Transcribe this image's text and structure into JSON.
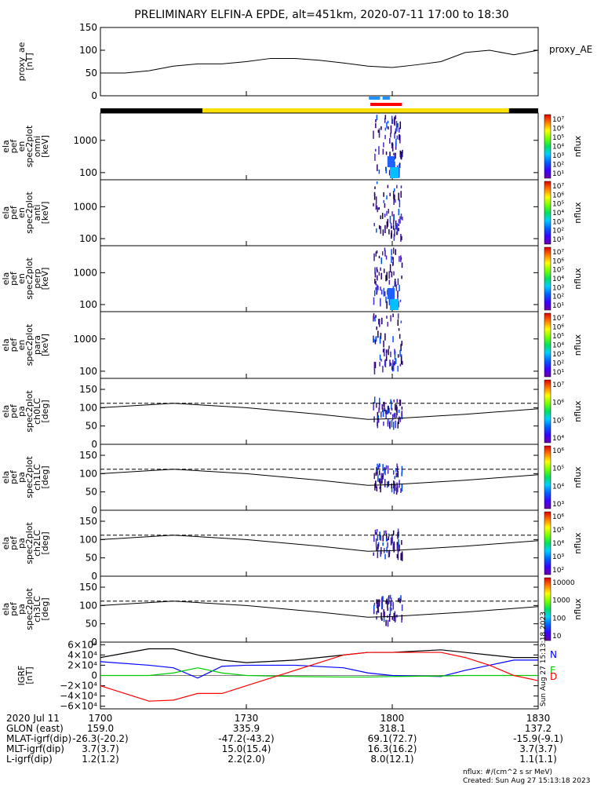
{
  "title": "PRELIMINARY ELFIN-A EPDE, alt=451km, 2020-07-11 17:00 to 18:30",
  "colors": {
    "ae_line": "#000000",
    "bar_sci_a": "#1e90ff",
    "bar_sci_b": "#ff0000",
    "bar_day": "#ffe000",
    "bar_night": "#000000",
    "grf_n": "#0000ff",
    "grf_e": "#00cc00",
    "grf_d": "#ff0000",
    "grf_tot": "#000000"
  },
  "chart_data": {
    "type": "stacked-timeseries",
    "x_range": [
      "17:00",
      "18:30"
    ],
    "x_ticks": [
      "1700",
      "1730",
      "1800",
      "1830"
    ],
    "x_tick_minutes": [
      0,
      30,
      60,
      90
    ],
    "panels": [
      {
        "id": "proxy_ae",
        "type": "line",
        "ylabel": [
          "proxy_ae",
          "[nT]"
        ],
        "legend": "proxy_AE",
        "ylim": [
          0,
          150
        ],
        "yticks": [
          "150",
          "100",
          "50",
          "0"
        ],
        "ytick_values": [
          150,
          100,
          50,
          0
        ],
        "x_minutes": [
          0,
          5,
          10,
          15,
          20,
          25,
          30,
          35,
          40,
          45,
          50,
          55,
          60,
          65,
          70,
          75,
          80,
          85,
          90
        ],
        "values": [
          50,
          50,
          55,
          65,
          70,
          70,
          75,
          82,
          82,
          78,
          72,
          65,
          62,
          68,
          75,
          95,
          100,
          90,
          100
        ]
      },
      {
        "id": "omni",
        "type": "spectrogram",
        "ylabel": [
          "ela",
          "pef",
          "en",
          "spec2plot",
          "omni",
          "[keV]"
        ],
        "yticks": [
          "1000",
          "100"
        ],
        "ytick_values": [
          1000,
          100
        ],
        "ylog": true,
        "ylim": [
          60,
          7000
        ],
        "zlabel": "nflux",
        "zticks": [
          "10⁷",
          "10⁶",
          "10⁵",
          "10⁴",
          "10³",
          "10²",
          "10¹"
        ]
      },
      {
        "id": "anti",
        "type": "spectrogram",
        "ylabel": [
          "ela",
          "pef",
          "en",
          "spec2plot",
          "anti",
          "[keV]"
        ],
        "yticks": [
          "1000",
          "100"
        ],
        "ytick_values": [
          1000,
          100
        ],
        "ylog": true,
        "ylim": [
          60,
          7000
        ],
        "zlabel": "nflux",
        "zticks": [
          "10⁷",
          "10⁶",
          "10⁵",
          "10⁴",
          "10³",
          "10²",
          "10¹"
        ]
      },
      {
        "id": "perp",
        "type": "spectrogram",
        "ylabel": [
          "ela",
          "pef",
          "en",
          "spec2plot",
          "perp",
          "[keV]"
        ],
        "yticks": [
          "1000",
          "100"
        ],
        "ytick_values": [
          1000,
          100
        ],
        "ylog": true,
        "ylim": [
          60,
          7000
        ],
        "zlabel": "nflux",
        "zticks": [
          "10⁷",
          "10⁶",
          "10⁵",
          "10⁴",
          "10³",
          "10²",
          "10¹"
        ]
      },
      {
        "id": "para",
        "type": "spectrogram",
        "ylabel": [
          "ela",
          "pef",
          "en",
          "spec2plot",
          "para",
          "[keV]"
        ],
        "yticks": [
          "1000",
          "100"
        ],
        "ytick_values": [
          1000,
          100
        ],
        "ylog": true,
        "ylim": [
          60,
          7000
        ],
        "zlabel": "nflux",
        "zticks": [
          "10⁷",
          "10⁶",
          "10⁵",
          "10⁴",
          "10³",
          "10²",
          "10¹"
        ]
      },
      {
        "id": "ch0LC",
        "type": "pitch-angle",
        "ylabel": [
          "ela",
          "pef",
          "pa",
          "spec2plot",
          "ch0LC",
          "[deg]"
        ],
        "yticks": [
          "150",
          "100",
          "50",
          "0"
        ],
        "ytick_values": [
          150,
          100,
          50,
          0
        ],
        "ylim": [
          0,
          180
        ],
        "zlabel": "nflux",
        "zticks": [
          "10⁷",
          "10⁶",
          "10⁵",
          "10⁴"
        ]
      },
      {
        "id": "ch1LC",
        "type": "pitch-angle",
        "ylabel": [
          "ela",
          "pef",
          "pa",
          "spec2plot",
          "ch1LC",
          "[deg]"
        ],
        "yticks": [
          "150",
          "100",
          "50",
          "0"
        ],
        "ytick_values": [
          150,
          100,
          50,
          0
        ],
        "ylim": [
          0,
          180
        ],
        "zlabel": "nflux",
        "zticks": [
          "10⁶",
          "10⁵",
          "10⁴",
          "10³"
        ]
      },
      {
        "id": "ch2LC",
        "type": "pitch-angle",
        "ylabel": [
          "ela",
          "pef",
          "pa",
          "spec2plot",
          "ch2LC",
          "[deg]"
        ],
        "yticks": [
          "150",
          "100",
          "50",
          "0"
        ],
        "ytick_values": [
          150,
          100,
          50,
          0
        ],
        "ylim": [
          0,
          180
        ],
        "zlabel": "nflux",
        "zticks": [
          "10⁶",
          "10⁵",
          "10⁴",
          "10³",
          "10²"
        ]
      },
      {
        "id": "ch3LC",
        "type": "pitch-angle",
        "ylabel": [
          "ela",
          "pef",
          "pa",
          "spec2plot",
          "ch3LC",
          "[deg]"
        ],
        "yticks": [
          "150",
          "100",
          "50",
          "0"
        ],
        "ytick_values": [
          150,
          100,
          50,
          0
        ],
        "ylim": [
          0,
          180
        ],
        "zlabel": "nflux",
        "zticks": [
          "10000",
          "1000",
          "100",
          "10"
        ]
      },
      {
        "id": "igrf",
        "type": "line",
        "ylabel": [
          "IGRF",
          "[nT]"
        ],
        "ylim": [
          -65000,
          65000
        ],
        "yticks": [
          "6×10⁴",
          "4×10⁴",
          "2×10⁴",
          "0",
          "−2×10⁴",
          "−4×10⁴",
          "−6×10⁴"
        ],
        "ytick_values": [
          60000,
          40000,
          20000,
          0,
          -20000,
          -40000,
          -60000
        ],
        "series_labels": [
          "N",
          "E",
          "D"
        ],
        "side_note": "Sun Aug 27 15:13:18 2023"
      }
    ],
    "pitch_angle_lines": {
      "x_minutes": [
        0,
        15,
        30,
        45,
        55,
        60,
        75,
        90
      ],
      "loss_cone_deg": [
        100,
        112,
        100,
        82,
        68,
        70,
        82,
        97
      ],
      "anti_loss_cone_deg": [
        112,
        112,
        112,
        112,
        112,
        112,
        112,
        112
      ]
    },
    "igrf_series": {
      "x_minutes": [
        0,
        10,
        15,
        20,
        25,
        30,
        40,
        50,
        55,
        60,
        70,
        75,
        80,
        85,
        90
      ],
      "N": [
        27000,
        20000,
        15000,
        -5000,
        18000,
        20000,
        20000,
        15000,
        5000,
        0,
        -2000,
        10000,
        20000,
        30000,
        30000
      ],
      "E": [
        0,
        0,
        5000,
        15000,
        5000,
        0,
        -2000,
        -3000,
        -3000,
        -2000,
        -1000,
        0,
        0,
        0,
        0
      ],
      "D": [
        -20000,
        -50000,
        -48000,
        -35000,
        -35000,
        -20000,
        10000,
        40000,
        45000,
        45000,
        45000,
        35000,
        20000,
        0,
        -10000
      ],
      "total": [
        35000,
        52000,
        52000,
        40000,
        30000,
        25000,
        30000,
        40000,
        45000,
        45000,
        50000,
        45000,
        40000,
        35000,
        35000
      ]
    }
  },
  "ephemeris": {
    "labels": [
      "2020 Jul 11",
      "GLON (east)",
      "MLAT-igrf(dip)",
      "MLT-igrf(dip)",
      "L-igrf(dip)"
    ],
    "rows": [
      [
        "1700",
        "1730",
        "1800",
        "1830"
      ],
      [
        "159.0",
        "335.9",
        "318.1",
        "137.2"
      ],
      [
        "-26.3(-20.2)",
        "-47.2(-43.2)",
        "69.1(72.7)",
        "-15.9(-9.1)"
      ],
      [
        "3.7(3.7)",
        "15.0(15.4)",
        "16.3(16.2)",
        "3.7(3.7)"
      ],
      [
        "1.2(1.2)",
        "2.2(2.0)",
        "8.0(12.1)",
        "1.1(1.1)"
      ]
    ]
  },
  "footer": {
    "units": "nflux: #/(cm^2 s sr MeV)",
    "created": "Created: Sun Aug 27 15:13:18 2023"
  }
}
